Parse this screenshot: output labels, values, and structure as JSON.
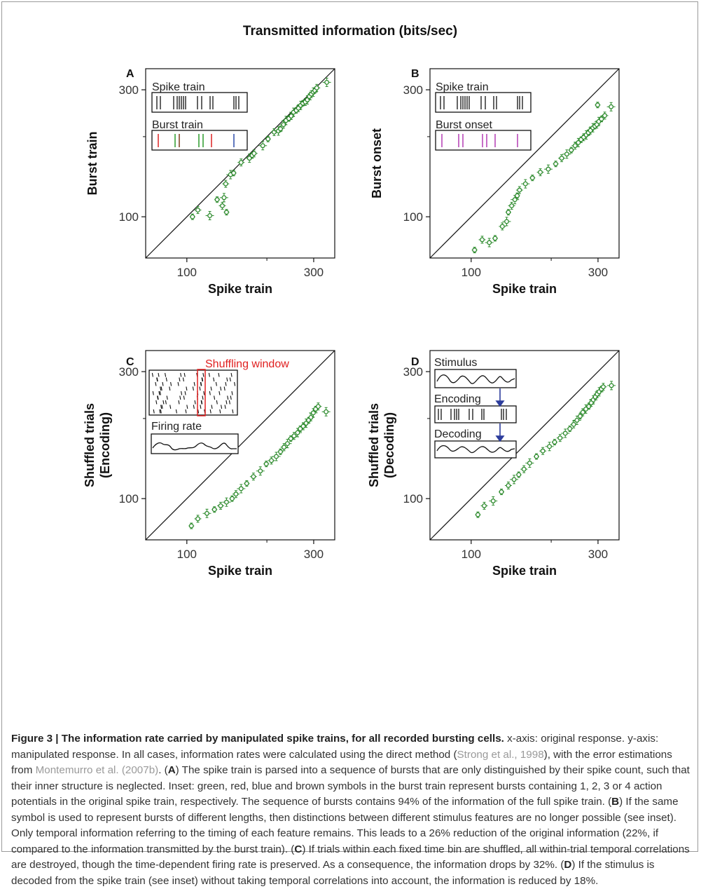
{
  "figure_title": "Transmitted information (bits/sec)",
  "ticks": {
    "t100": "100",
    "t300": "300"
  },
  "chart_data": [
    {
      "type": "scatter",
      "panel": "A",
      "xlabel": "Spike train",
      "ylabel": "Burst train",
      "scale": "log",
      "xlim": [
        70,
        360
      ],
      "ylim": [
        70,
        360
      ],
      "ticks": [
        100,
        300
      ],
      "diagonal": true,
      "inset": {
        "labels": [
          "Spike train",
          "Burst train"
        ]
      },
      "points": [
        [
          105,
          100
        ],
        [
          110,
          106
        ],
        [
          122,
          101
        ],
        [
          130,
          116
        ],
        [
          136,
          110
        ],
        [
          138,
          118
        ],
        [
          141,
          104
        ],
        [
          140,
          133
        ],
        [
          146,
          144
        ],
        [
          150,
          146
        ],
        [
          160,
          160
        ],
        [
          172,
          166
        ],
        [
          176,
          170
        ],
        [
          179,
          173
        ],
        [
          193,
          185
        ],
        [
          202,
          196
        ],
        [
          213,
          208
        ],
        [
          221,
          210
        ],
        [
          225,
          214
        ],
        [
          231,
          222
        ],
        [
          236,
          230
        ],
        [
          242,
          234
        ],
        [
          247,
          239
        ],
        [
          252,
          247
        ],
        [
          258,
          251
        ],
        [
          263,
          256
        ],
        [
          268,
          262
        ],
        [
          273,
          267
        ],
        [
          279,
          270
        ],
        [
          284,
          275
        ],
        [
          289,
          283
        ],
        [
          294,
          289
        ],
        [
          299,
          294
        ],
        [
          303,
          298
        ],
        [
          308,
          305
        ],
        [
          336,
          320
        ]
      ],
      "marker_color": "#2e8b2e"
    },
    {
      "type": "scatter",
      "panel": "B",
      "xlabel": "Spike train",
      "ylabel": "Burst onset",
      "scale": "log",
      "xlim": [
        70,
        360
      ],
      "ylim": [
        70,
        360
      ],
      "ticks": [
        100,
        300
      ],
      "diagonal": true,
      "inset": {
        "labels": [
          "Spike train",
          "Burst onset"
        ]
      },
      "points": [
        [
          103,
          75
        ],
        [
          110,
          82
        ],
        [
          117,
          80
        ],
        [
          123,
          83
        ],
        [
          131,
          92
        ],
        [
          136,
          96
        ],
        [
          138,
          104
        ],
        [
          142,
          110
        ],
        [
          146,
          116
        ],
        [
          149,
          120
        ],
        [
          152,
          126
        ],
        [
          160,
          133
        ],
        [
          170,
          140
        ],
        [
          182,
          147
        ],
        [
          195,
          151
        ],
        [
          208,
          158
        ],
        [
          219,
          166
        ],
        [
          229,
          172
        ],
        [
          238,
          178
        ],
        [
          246,
          185
        ],
        [
          253,
          190
        ],
        [
          259,
          195
        ],
        [
          265,
          199
        ],
        [
          271,
          203
        ],
        [
          276,
          207
        ],
        [
          281,
          211
        ],
        [
          287,
          216
        ],
        [
          292,
          219
        ],
        [
          297,
          222
        ],
        [
          302,
          228
        ],
        [
          309,
          233
        ],
        [
          318,
          240
        ],
        [
          336,
          259
        ],
        [
          299,
          263
        ]
      ],
      "marker_color": "#2e8b2e"
    },
    {
      "type": "scatter",
      "panel": "C",
      "xlabel": "Spike train",
      "ylabel": "Shuffled trials (Encoding)",
      "scale": "log",
      "xlim": [
        70,
        360
      ],
      "ylim": [
        70,
        360
      ],
      "ticks": [
        100,
        300
      ],
      "diagonal": true,
      "inset": {
        "labels": [
          "Shuffling window",
          "Firing rate"
        ]
      },
      "points": [
        [
          104,
          79
        ],
        [
          110,
          84
        ],
        [
          119,
          88
        ],
        [
          127,
          91
        ],
        [
          134,
          94
        ],
        [
          141,
          97
        ],
        [
          148,
          100
        ],
        [
          153,
          104
        ],
        [
          160,
          109
        ],
        [
          168,
          114
        ],
        [
          178,
          121
        ],
        [
          189,
          127
        ],
        [
          199,
          135
        ],
        [
          208,
          139
        ],
        [
          217,
          144
        ],
        [
          225,
          150
        ],
        [
          232,
          156
        ],
        [
          239,
          161
        ],
        [
          246,
          168
        ],
        [
          253,
          172
        ],
        [
          261,
          177
        ],
        [
          267,
          183
        ],
        [
          274,
          187
        ],
        [
          281,
          192
        ],
        [
          287,
          197
        ],
        [
          293,
          202
        ],
        [
          299,
          210
        ],
        [
          305,
          217
        ],
        [
          312,
          222
        ],
        [
          334,
          212
        ]
      ],
      "marker_color": "#2e8b2e"
    },
    {
      "type": "scatter",
      "panel": "D",
      "xlabel": "Spike train",
      "ylabel": "Shuffled trials (Decoding)",
      "scale": "log",
      "xlim": [
        70,
        360
      ],
      "ylim": [
        70,
        360
      ],
      "ticks": [
        100,
        300
      ],
      "diagonal": true,
      "inset": {
        "labels": [
          "Stimulus",
          "Encoding",
          "Decoding"
        ]
      },
      "points": [
        [
          106,
          87
        ],
        [
          112,
          94
        ],
        [
          121,
          98
        ],
        [
          130,
          106
        ],
        [
          138,
          112
        ],
        [
          145,
          118
        ],
        [
          151,
          123
        ],
        [
          158,
          129
        ],
        [
          166,
          136
        ],
        [
          176,
          144
        ],
        [
          186,
          151
        ],
        [
          197,
          157
        ],
        [
          206,
          163
        ],
        [
          216,
          169
        ],
        [
          226,
          176
        ],
        [
          235,
          183
        ],
        [
          243,
          190
        ],
        [
          250,
          197
        ],
        [
          257,
          204
        ],
        [
          263,
          211
        ],
        [
          270,
          217
        ],
        [
          277,
          222
        ],
        [
          283,
          229
        ],
        [
          288,
          235
        ],
        [
          293,
          241
        ],
        [
          298,
          247
        ],
        [
          303,
          252
        ],
        [
          309,
          258
        ],
        [
          314,
          263
        ],
        [
          337,
          266
        ]
      ],
      "marker_color": "#2e8b2e"
    }
  ],
  "caption": {
    "title": "Figure 3 | The information rate carried by manipulated spike trains, for all recorded bursting cells.",
    "p1": " x-axis: original response. y-axis: manipulated response. In all cases, information rates were calculated using the direct method (",
    "ref1": "Strong et al., 1998",
    "p2": "), with the error estimations from ",
    "ref2": "Montemurro et al. (2007b)",
    "p3": ". (",
    "A": "A",
    "p4": ") The spike train is parsed into a sequence of bursts that are only distinguished by their spike count, such that their inner structure is neglected. Inset: green, red, blue and brown symbols in the burst train represent bursts containing 1, 2, 3 or 4 action potentials in the original spike train, respectively. The sequence of bursts contains 94% of the information of the full spike train. (",
    "B": "B",
    "p5": ") If the same symbol is used to represent bursts of different lengths, then distinctions between different stimulus features are no longer possible (see inset). Only temporal information referring to the timing of each feature remains. This leads to a 26% reduction of the original information (22%, if compared to the information transmitted by the burst train). (",
    "C": "C",
    "p6": ") If trials within each fixed time bin are shuffled, all within-trial temporal correlations are destroyed, though the time-dependent firing rate is preserved. As a consequence, the information drops by 32%. (",
    "D": "D",
    "p7": ") If the stimulus is decoded from the spike train (see inset) without taking temporal correlations into account, the information is reduced by 18%."
  }
}
